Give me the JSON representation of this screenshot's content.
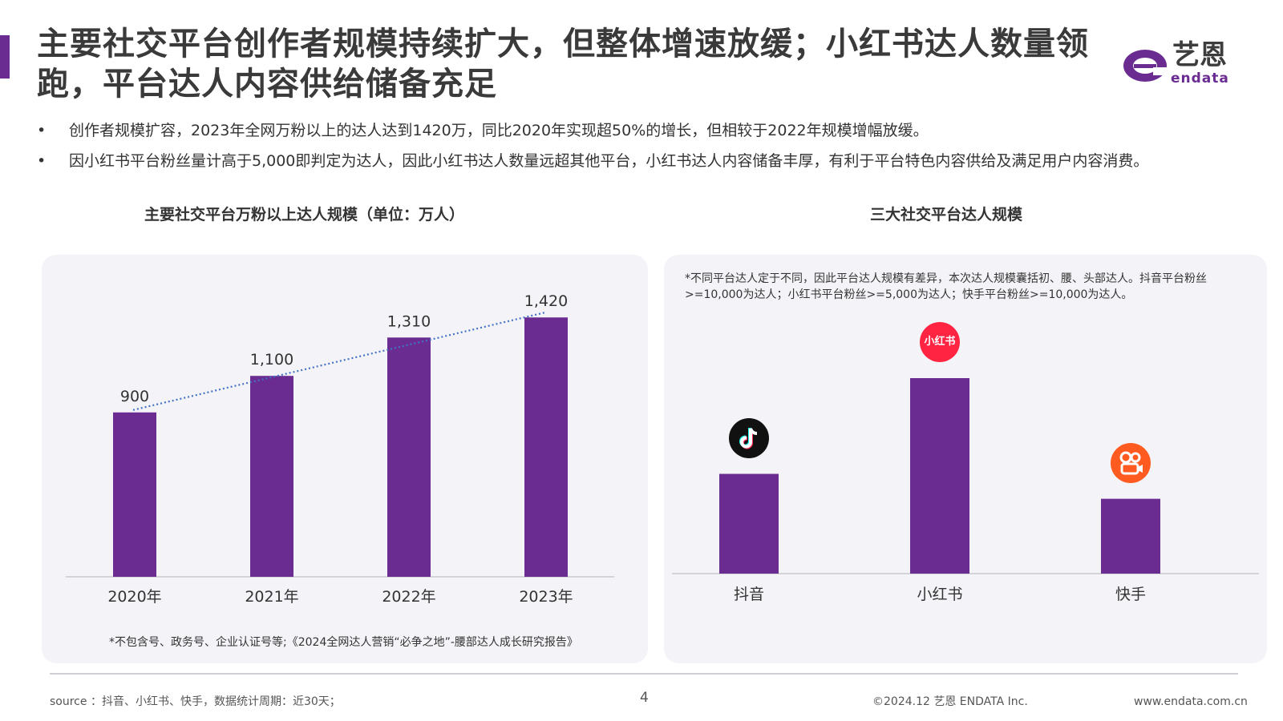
{
  "title": "主要社交平台创作者规模持续扩大，但整体增速放缓；小红书达人数量领跑，平台达人内容供给储备充足",
  "logo": {
    "cn": "艺恩",
    "en": "endata"
  },
  "bullets": [
    "创作者规模扩容，2023年全网万粉以上的达人达到1420万，同比2020年实现超50%的增长，但相较于2022年规模增幅放缓。",
    "因小红书平台粉丝量计高于5,000即判定为达人，因此小红书达人数量远超其他平台，小红书达人内容储备丰厚，有利于平台特色内容供给及满足用户内容消费。"
  ],
  "bullet_marker": "•",
  "left_chart_title": "主要社交平台万粉以上达人规模（单位：万人）",
  "right_chart_title": "三大社交平台达人规模",
  "left_chart_note": "*不包含号、政务号、企业认证号等;《2024全网达人营销“必争之地”-腰部达人成长研究报告》",
  "right_chart_note": "*不同平台达人定于不同，因此平台达人规模有差异，本次达人规模囊括初、腰、头部达人。抖音平台粉丝>=10,000为达人；小红书平台粉丝>=5,000为达人；快手平台粉丝>=10,000为达人。",
  "xhs_icon_text": "小红书",
  "chart_data": [
    {
      "type": "bar",
      "title": "主要社交平台万粉以上达人规模（单位：万人）",
      "categories": [
        "2020年",
        "2021年",
        "2022年",
        "2023年"
      ],
      "values": [
        900,
        1100,
        1310,
        1420
      ],
      "value_labels": [
        "900",
        "1,100",
        "1,310",
        "1,420"
      ],
      "trendline": "dotted",
      "ylim": [
        0,
        1500
      ],
      "bar_color": "#6a2c91",
      "trend_color": "#4472c4",
      "grid": false
    },
    {
      "type": "bar",
      "title": "三大社交平台达人规模",
      "categories": [
        "抖音",
        "小红书",
        "快手"
      ],
      "values": [
        1.0,
        1.96,
        0.75
      ],
      "value_unit": "relative (no axis labels shown)",
      "icons": [
        "douyin-icon",
        "xiaohongshu-icon",
        "kuaishou-icon"
      ],
      "bar_color": "#6a2c91",
      "grid": false
    }
  ],
  "footer": {
    "source": "source ：抖音、小红书、快手，数据统计周期：近30天；",
    "page": "4",
    "copyright": "©2024.12  艺恩 ENDATA Inc.",
    "website": "www.endata.com.cn"
  },
  "colors": {
    "accent": "#6a2c91",
    "panel_bg": "#f4f4f8",
    "trend": "#4472c4"
  }
}
